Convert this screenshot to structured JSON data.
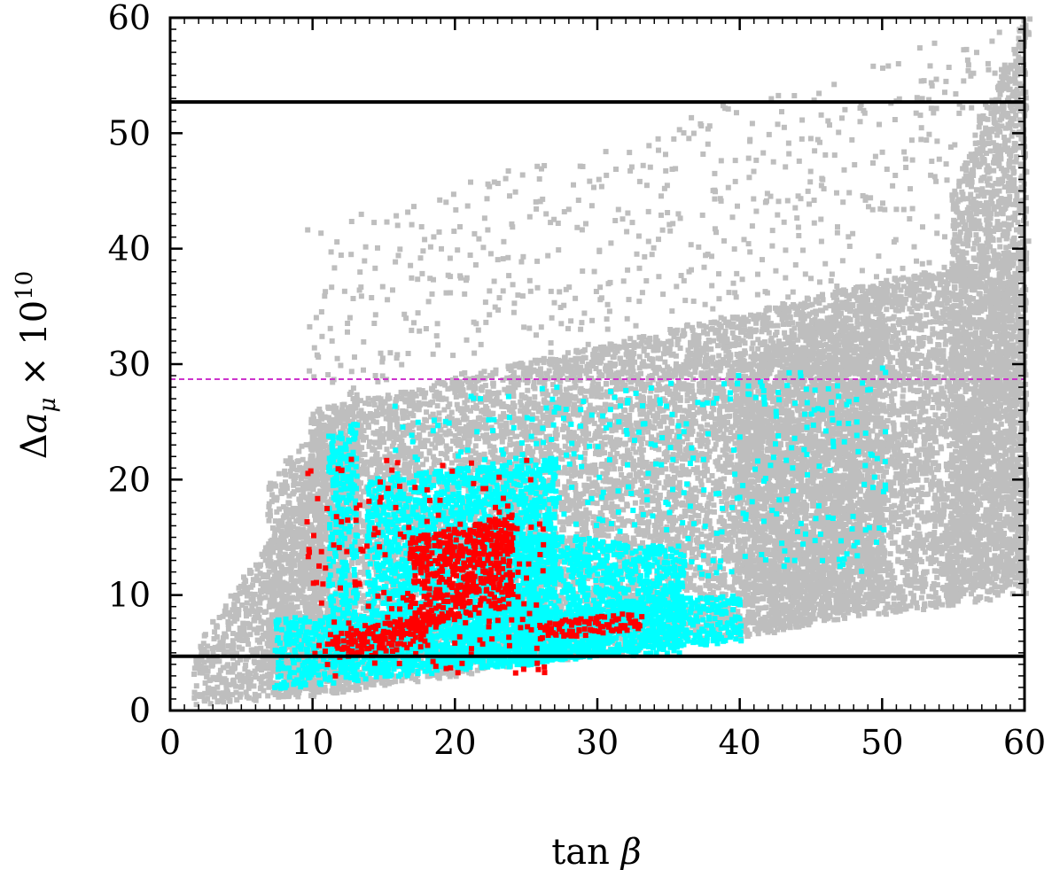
{
  "chart_data": {
    "type": "scatter",
    "title": "",
    "xlabel": {
      "pre": "tan ",
      "sym": "β"
    },
    "ylabel": {
      "pre": "Δ",
      "a": "a",
      "sub": "μ",
      "times": " × 10",
      "sup": "10"
    },
    "xlim": [
      0,
      60
    ],
    "ylim": [
      0,
      60
    ],
    "xticks": [
      "0",
      "10",
      "20",
      "30",
      "40",
      "50",
      "60"
    ],
    "yticks": [
      "0",
      "10",
      "20",
      "30",
      "40",
      "50",
      "60"
    ],
    "grid": false,
    "legend": "none",
    "hlines": [
      {
        "y": 52.7,
        "color": "#000000",
        "style": "solid"
      },
      {
        "y": 28.7,
        "color": "#cc33cc",
        "style": "dashed"
      },
      {
        "y": 4.7,
        "color": "#000000",
        "style": "solid"
      }
    ],
    "series": [
      {
        "color": "#bebebe",
        "regions": [
          {
            "x": [
              1.8,
              10
            ],
            "ylo": [
              0.5,
              1.2
            ],
            "yhi": [
              5.5,
              20
            ]
          },
          {
            "x": [
              7,
              13
            ],
            "ylo": [
              1,
              2
            ],
            "yhi": [
              20,
              28
            ]
          },
          {
            "x": [
              10,
              60
            ],
            "ylo": [
              1.2,
              10
            ],
            "yhi": [
              26,
              40
            ]
          },
          {
            "x": [
              40,
              50
            ],
            "ylo": [
              6,
              9
            ],
            "yhi": [
              30,
              37
            ]
          },
          {
            "x": [
              55,
              60
            ],
            "ylo": [
              10,
              12
            ],
            "yhi": [
              45,
              60
            ]
          },
          {
            "x": [
              10,
              60
            ],
            "ylo": [
              28,
              28
            ],
            "yhi": [
              42,
              60
            ],
            "sparse": true
          }
        ]
      },
      {
        "color": "#00ffff",
        "regions": [
          {
            "x": [
              11.3,
              13
            ],
            "ylo": [
              3,
              3
            ],
            "yhi": [
              24,
              25
            ]
          },
          {
            "x": [
              7.5,
              40
            ],
            "ylo": [
              1.8,
              6
            ],
            "yhi": [
              8,
              10
            ]
          },
          {
            "x": [
              14,
              27
            ],
            "ylo": [
              3,
              4
            ],
            "yhi": [
              20,
              22
            ]
          },
          {
            "x": [
              22,
              36
            ],
            "ylo": [
              4,
              5
            ],
            "yhi": [
              16,
              14
            ]
          },
          {
            "x": [
              16,
              50
            ],
            "ylo": [
              10,
              12
            ],
            "yhi": [
              27,
              30
            ],
            "sparse": true
          }
        ]
      },
      {
        "color": "#ff0000",
        "regions": [
          {
            "x": [
              26,
              33
            ],
            "ylo": [
              6,
              7
            ],
            "yhi": [
              7.6,
              8.7
            ]
          },
          {
            "x": [
              17,
              24
            ],
            "ylo": [
              7,
              9
            ],
            "yhi": [
              15,
              17
            ]
          },
          {
            "x": [
              11.5,
              18
            ],
            "ylo": [
              4.5,
              5.5
            ],
            "yhi": [
              6.5,
              8.5
            ]
          },
          {
            "x": [
              10,
              26
            ],
            "ylo": [
              3,
              3
            ],
            "yhi": [
              22,
              22
            ],
            "sparse": true
          }
        ]
      }
    ]
  }
}
